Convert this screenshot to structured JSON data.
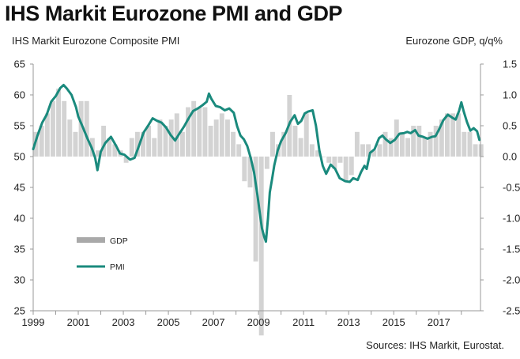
{
  "title": "IHS Markit Eurozone PMI and GDP",
  "subtitle_left": "IHS Markit Eurozone Composite PMI",
  "subtitle_right": "Eurozone GDP, q/q%",
  "source": "Sources: IHS Markit, Eurostat.",
  "colors": {
    "pmi": "#1a8a7d",
    "gdp": "#d3d3d3",
    "axis": "#999999"
  },
  "chart_data": {
    "type": "bar+line",
    "left_axis": {
      "range": [
        25,
        65
      ],
      "ticks": [
        65,
        60,
        55,
        50,
        45,
        40,
        35,
        30,
        25
      ]
    },
    "right_axis": {
      "range": [
        -2.5,
        1.5
      ],
      "ticks": [
        "1.5",
        "1.0",
        "0.5",
        "0.0",
        "-0.5",
        "-1.0",
        "-1.5",
        "-2.0",
        "-2.5"
      ]
    },
    "x_ticks": [
      "1999",
      "2001",
      "2003",
      "2005",
      "2007",
      "2009",
      "2011",
      "2013",
      "2015",
      "2017"
    ],
    "x_range": [
      1999.0,
      2018.85
    ],
    "legend": [
      {
        "label": "GDP",
        "kind": "bar"
      },
      {
        "label": "PMI",
        "kind": "line"
      }
    ],
    "gdp": {
      "name": "GDP",
      "axis": "right",
      "start": 1999.0,
      "step": 0.25,
      "values": [
        0.4,
        0.5,
        0.7,
        0.9,
        1.1,
        0.9,
        0.6,
        0.4,
        0.9,
        0.9,
        0.3,
        0.1,
        0.5,
        0.3,
        0.2,
        0.1,
        -0.1,
        0.3,
        0.4,
        0.4,
        0.5,
        0.3,
        0.6,
        0.5,
        0.6,
        0.7,
        0.4,
        0.8,
        0.9,
        0.8,
        0.8,
        0.5,
        0.6,
        0.7,
        0.6,
        0.4,
        0.2,
        -0.4,
        -0.5,
        -1.7,
        -2.9,
        -0.2,
        0.4,
        0.2,
        0.4,
        1.0,
        0.5,
        0.3,
        0.7,
        0.2,
        0.1,
        0.0,
        -0.1,
        -0.2,
        -0.1,
        -0.4,
        -0.3,
        0.4,
        0.2,
        0.2,
        0.1,
        0.2,
        0.4,
        0.3,
        0.6,
        0.4,
        0.3,
        0.5,
        0.5,
        0.3,
        0.4,
        0.5,
        0.6,
        0.7,
        0.7,
        0.7,
        0.4,
        0.4,
        0.2,
        0.2
      ]
    },
    "pmi": {
      "name": "PMI",
      "axis": "left",
      "points": [
        [
          1999.0,
          51.2
        ],
        [
          1999.2,
          53.5
        ],
        [
          1999.4,
          55.5
        ],
        [
          1999.6,
          56.8
        ],
        [
          1999.8,
          58.9
        ],
        [
          2000.0,
          59.8
        ],
        [
          2000.2,
          61.1
        ],
        [
          2000.35,
          61.6
        ],
        [
          2000.5,
          61.0
        ],
        [
          2000.7,
          60.0
        ],
        [
          2000.9,
          58.0
        ],
        [
          2001.0,
          56.5
        ],
        [
          2001.2,
          54.8
        ],
        [
          2001.4,
          53.0
        ],
        [
          2001.6,
          51.4
        ],
        [
          2001.75,
          49.8
        ],
        [
          2001.85,
          47.8
        ],
        [
          2002.0,
          50.8
        ],
        [
          2002.2,
          52.2
        ],
        [
          2002.45,
          53.2
        ],
        [
          2002.7,
          51.6
        ],
        [
          2002.85,
          50.5
        ],
        [
          2003.05,
          50.3
        ],
        [
          2003.3,
          49.5
        ],
        [
          2003.5,
          49.8
        ],
        [
          2003.7,
          51.8
        ],
        [
          2003.9,
          53.9
        ],
        [
          2004.1,
          55.0
        ],
        [
          2004.3,
          56.2
        ],
        [
          2004.5,
          55.8
        ],
        [
          2004.7,
          55.5
        ],
        [
          2004.9,
          54.7
        ],
        [
          2005.1,
          53.5
        ],
        [
          2005.3,
          52.6
        ],
        [
          2005.5,
          53.8
        ],
        [
          2005.7,
          54.9
        ],
        [
          2005.9,
          56.2
        ],
        [
          2006.1,
          57.4
        ],
        [
          2006.3,
          57.8
        ],
        [
          2006.5,
          58.3
        ],
        [
          2006.7,
          58.9
        ],
        [
          2006.8,
          60.2
        ],
        [
          2006.9,
          59.4
        ],
        [
          2007.1,
          58.2
        ],
        [
          2007.3,
          58.0
        ],
        [
          2007.5,
          57.5
        ],
        [
          2007.7,
          57.8
        ],
        [
          2007.9,
          57.1
        ],
        [
          2008.05,
          54.9
        ],
        [
          2008.2,
          53.4
        ],
        [
          2008.35,
          52.8
        ],
        [
          2008.5,
          51.7
        ],
        [
          2008.65,
          49.8
        ],
        [
          2008.8,
          47.5
        ],
        [
          2008.95,
          43.8
        ],
        [
          2009.05,
          41.0
        ],
        [
          2009.15,
          38.4
        ],
        [
          2009.25,
          37.0
        ],
        [
          2009.33,
          36.2
        ],
        [
          2009.42,
          40.0
        ],
        [
          2009.5,
          44.2
        ],
        [
          2009.6,
          46.3
        ],
        [
          2009.7,
          48.6
        ],
        [
          2009.85,
          51.0
        ],
        [
          2010.0,
          52.5
        ],
        [
          2010.2,
          53.8
        ],
        [
          2010.4,
          55.6
        ],
        [
          2010.6,
          56.7
        ],
        [
          2010.75,
          55.3
        ],
        [
          2010.9,
          55.8
        ],
        [
          2011.05,
          57.0
        ],
        [
          2011.2,
          57.3
        ],
        [
          2011.4,
          57.5
        ],
        [
          2011.55,
          55.0
        ],
        [
          2011.7,
          51.0
        ],
        [
          2011.85,
          48.5
        ],
        [
          2012.0,
          47.2
        ],
        [
          2012.2,
          48.7
        ],
        [
          2012.4,
          48.0
        ],
        [
          2012.6,
          46.5
        ],
        [
          2012.85,
          46.0
        ],
        [
          2013.05,
          45.9
        ],
        [
          2013.2,
          46.5
        ],
        [
          2013.4,
          46.2
        ],
        [
          2013.55,
          47.5
        ],
        [
          2013.7,
          48.5
        ],
        [
          2013.8,
          48.0
        ],
        [
          2013.95,
          50.6
        ],
        [
          2014.15,
          51.2
        ],
        [
          2014.35,
          53.0
        ],
        [
          2014.5,
          53.4
        ],
        [
          2014.65,
          52.8
        ],
        [
          2014.85,
          52.2
        ],
        [
          2015.05,
          52.7
        ],
        [
          2015.25,
          53.7
        ],
        [
          2015.45,
          53.8
        ],
        [
          2015.6,
          54.0
        ],
        [
          2015.75,
          53.8
        ],
        [
          2015.95,
          54.3
        ],
        [
          2016.1,
          53.4
        ],
        [
          2016.3,
          53.2
        ],
        [
          2016.5,
          52.9
        ],
        [
          2016.7,
          53.2
        ],
        [
          2016.85,
          53.3
        ],
        [
          2017.0,
          54.3
        ],
        [
          2017.2,
          55.9
        ],
        [
          2017.4,
          56.8
        ],
        [
          2017.6,
          56.3
        ],
        [
          2017.75,
          56.0
        ],
        [
          2017.9,
          57.4
        ],
        [
          2018.0,
          58.8
        ],
        [
          2018.1,
          57.4
        ],
        [
          2018.25,
          55.6
        ],
        [
          2018.4,
          54.2
        ],
        [
          2018.55,
          54.6
        ],
        [
          2018.7,
          54.1
        ],
        [
          2018.8,
          52.7
        ]
      ]
    }
  }
}
